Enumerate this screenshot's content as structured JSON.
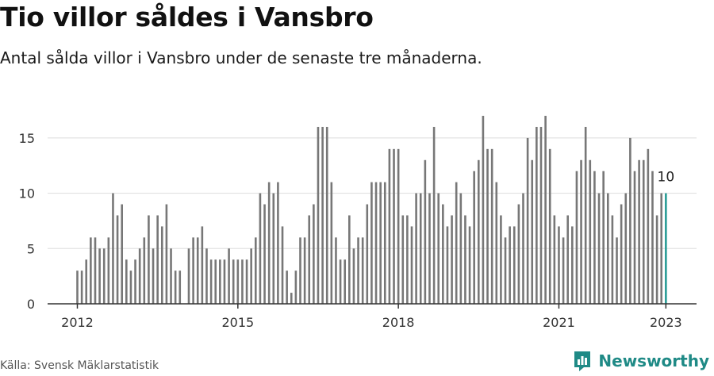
{
  "header": {
    "title": "Tio villor såldes i Vansbro",
    "subtitle": "Antal sålda villor i Vansbro under de senaste tre månaderna."
  },
  "footer": {
    "source": "Källa: Svensk Mäklarstatistik",
    "brand": "Newsworthy"
  },
  "colors": {
    "bar": "#777777",
    "highlight": "#2a9d96",
    "grid": "#dddddd",
    "axis": "#333333",
    "brand": "#1f8a86"
  },
  "chart_data": {
    "type": "bar",
    "start": "2012-01",
    "ylim": [
      0,
      17
    ],
    "yticks": [
      0,
      5,
      10,
      15
    ],
    "xticks": [
      "2012",
      "2015",
      "2018",
      "2021",
      "2023"
    ],
    "grid": true,
    "highlight_label": "10",
    "values": [
      3,
      3,
      4,
      6,
      6,
      5,
      5,
      6,
      10,
      8,
      9,
      4,
      3,
      4,
      5,
      6,
      8,
      5,
      8,
      7,
      9,
      5,
      3,
      3,
      null,
      5,
      6,
      6,
      7,
      5,
      4,
      4,
      4,
      4,
      5,
      4,
      4,
      4,
      4,
      5,
      6,
      10,
      9,
      11,
      10,
      11,
      7,
      3,
      1,
      3,
      6,
      6,
      8,
      9,
      16,
      16,
      16,
      11,
      6,
      4,
      4,
      8,
      5,
      6,
      6,
      9,
      11,
      11,
      11,
      11,
      14,
      14,
      14,
      8,
      8,
      7,
      10,
      10,
      13,
      10,
      16,
      10,
      9,
      7,
      8,
      11,
      10,
      8,
      7,
      12,
      13,
      17,
      14,
      14,
      11,
      8,
      6,
      7,
      7,
      9,
      10,
      15,
      13,
      16,
      16,
      17,
      14,
      8,
      7,
      6,
      8,
      7,
      12,
      13,
      16,
      13,
      12,
      10,
      12,
      10,
      8,
      6,
      9,
      10,
      15,
      12,
      13,
      13,
      14,
      12,
      8,
      10,
      10
    ]
  }
}
